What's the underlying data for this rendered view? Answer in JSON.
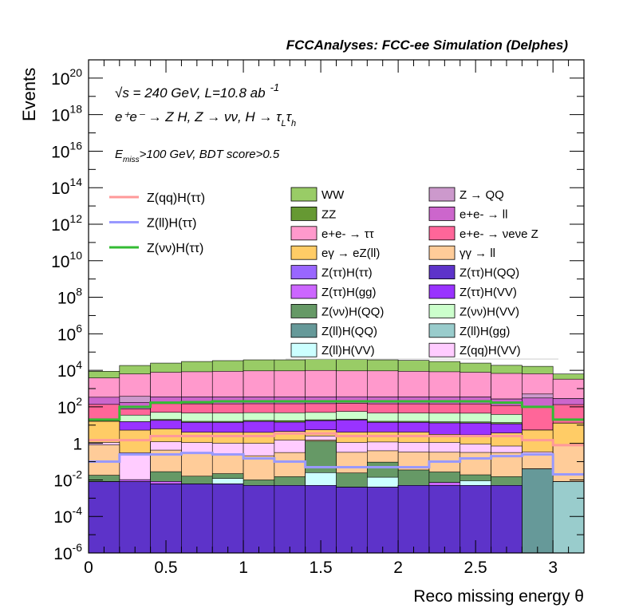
{
  "chart_data": {
    "type": "stacked-histogram",
    "title": "FCCAnalyses: FCC-ee Simulation (Delphes)",
    "xlabel": "Reco missing energy θ",
    "ylabel": "Events",
    "xlim": [
      0,
      3.2
    ],
    "ylim": [
      1e-06,
      1e+21
    ],
    "yscale": "log",
    "bin_edges": [
      0,
      0.2,
      0.4,
      0.6,
      0.8,
      1.0,
      1.2,
      1.4,
      1.6,
      1.8,
      2.0,
      2.2,
      2.4,
      2.6,
      2.8,
      3.0,
      3.2
    ],
    "x_ticks": [
      "0",
      "0.5",
      "1",
      "1.5",
      "2",
      "2.5",
      "3"
    ],
    "x_tick_values": [
      0,
      0.5,
      1,
      1.5,
      2,
      2.5,
      3
    ],
    "y_ticks": [
      {
        "base": "10",
        "exp": "-6",
        "value": 1e-06
      },
      {
        "base": "10",
        "exp": "-4",
        "value": 0.0001
      },
      {
        "base": "10",
        "exp": "-2",
        "value": 0.01
      },
      {
        "base": "1",
        "exp": "",
        "value": 1
      },
      {
        "base": "10",
        "exp": "2",
        "value": 100.0
      },
      {
        "base": "10",
        "exp": "4",
        "value": 10000.0
      },
      {
        "base": "10",
        "exp": "6",
        "value": 1000000.0
      },
      {
        "base": "10",
        "exp": "8",
        "value": 100000000.0
      },
      {
        "base": "10",
        "exp": "10",
        "value": 10000000000.0
      },
      {
        "base": "10",
        "exp": "12",
        "value": 1000000000000.0
      },
      {
        "base": "10",
        "exp": "14",
        "value": 100000000000000.0
      },
      {
        "base": "10",
        "exp": "16",
        "value": 1e+16
      },
      {
        "base": "10",
        "exp": "18",
        "value": 1e+18
      },
      {
        "base": "10",
        "exp": "20",
        "value": 1e+20
      }
    ],
    "annotations": {
      "line1": "√s = 240 GeV, L=10.8 ab",
      "line1_sup": "-1",
      "line2": "e⁺e⁻ → Z H, Z → νν, H → τ",
      "line2_sub1": "L",
      "line2_tau": "τ",
      "line2_sub2": "h",
      "line3": "E",
      "line3_sub": "miss",
      "line3_rest": ">100 GeV, BDT score>0.5"
    },
    "stack_order_top_first": [
      "WW",
      "e+e- → ττ",
      "Z → QQ",
      "e+e- → ll",
      "e+e- → νeνe Z",
      "Z(νν)H(VV)",
      "ZZ",
      "Z(ττ)H(VV)",
      "eγ → eZ(ll)",
      "Z(qq)H(VV)",
      "γγ → ll",
      "Z(νν)H(QQ)",
      "Z(ll)H(VV)",
      "Z(ττ)H(gg)",
      "Z(ll)H(QQ)",
      "Z(ll)H(gg)",
      "Z(ττ)H(QQ)"
    ],
    "backgrounds": [
      {
        "name": "Z(ττ)H(QQ)",
        "color": "#5d33c9",
        "values": [
          0.008,
          0.008,
          0.006,
          0.006,
          0.006,
          0.005,
          0.005,
          0.005,
          0.004,
          0.004,
          0.005,
          0.005,
          0.005,
          0.005,
          0,
          0
        ]
      },
      {
        "name": "Z(ll)H(gg)",
        "color": "#99cccc",
        "values": [
          0,
          0,
          0,
          0,
          0,
          0,
          0,
          0,
          0,
          0,
          0,
          0,
          0,
          0,
          0,
          0.008
        ]
      },
      {
        "name": "Z(ll)H(QQ)",
        "color": "#669999",
        "values": [
          0,
          0,
          0,
          0,
          0,
          0,
          0,
          0,
          0,
          0,
          0,
          0,
          0,
          0,
          0.04,
          0
        ]
      },
      {
        "name": "Z(ττ)H(gg)",
        "color": "#cc66ff",
        "values": [
          0,
          0.0022,
          0.0022,
          0,
          0,
          0,
          0,
          0,
          0,
          0,
          0,
          0.0022,
          0,
          0,
          0,
          0
        ]
      },
      {
        "name": "Z(ll)H(VV)",
        "color": "#ccffff",
        "values": [
          0,
          0,
          0,
          0,
          0.006,
          0,
          0,
          0.02,
          0,
          0.01,
          0,
          0,
          0.004,
          0,
          0,
          0
        ]
      },
      {
        "name": "Z(νν)H(QQ)",
        "color": "#669966",
        "values": [
          0.01,
          0,
          0.02,
          0.01,
          0.01,
          0.005,
          0.01,
          1.3,
          0.02,
          0.08,
          0.03,
          0.02,
          0.01,
          0.01,
          0,
          0
        ]
      },
      {
        "name": "γγ → ll",
        "color": "#ffcc99",
        "values": [
          0.8,
          0,
          0.4,
          0.3,
          0.2,
          0.2,
          0.3,
          0.2,
          0.3,
          0.3,
          0.3,
          0.3,
          0.3,
          0.3,
          0.2,
          0.8
        ]
      },
      {
        "name": "Z(qq)H(VV)",
        "color": "#ffccff",
        "values": [
          0.3,
          0.3,
          0.8,
          0.8,
          0.8,
          0.8,
          1.2,
          1.0,
          0.8,
          0.8,
          0.8,
          0.8,
          0.6,
          0.4,
          0.1,
          0.08
        ]
      },
      {
        "name": "eγ → eZ(ll)",
        "color": "#ffcc66",
        "values": [
          15,
          5,
          5,
          3,
          3,
          3,
          3,
          3,
          3,
          3,
          3,
          2,
          2,
          3,
          5,
          12
        ]
      },
      {
        "name": "Z(ττ)H(VV)",
        "color": "#9933ff",
        "values": [
          0,
          10,
          12,
          10,
          10,
          12,
          10,
          12,
          15,
          10,
          10,
          10,
          10,
          8,
          0,
          0
        ]
      },
      {
        "name": "ZZ",
        "color": "#669933",
        "values": [
          0,
          0,
          2,
          2,
          2,
          2,
          3,
          2,
          2,
          2,
          2,
          2,
          2,
          2,
          0,
          0
        ]
      },
      {
        "name": "Z(νν)H(VV)",
        "color": "#ccffcc",
        "values": [
          0,
          20,
          30,
          30,
          30,
          30,
          30,
          30,
          35,
          30,
          30,
          30,
          30,
          25,
          0,
          0
        ]
      },
      {
        "name": "e+e- → νeνe Z",
        "color": "#ff6699",
        "values": [
          120,
          40,
          100,
          100,
          100,
          100,
          100,
          100,
          100,
          100,
          100,
          100,
          100,
          80,
          100,
          120
        ]
      },
      {
        "name": "e+e- → ll",
        "color": "#cc66cc",
        "values": [
          200,
          100,
          200,
          200,
          200,
          200,
          200,
          200,
          200,
          200,
          200,
          200,
          200,
          150,
          200,
          150
        ]
      },
      {
        "name": "Z → QQ",
        "color": "#cc99cc",
        "values": [
          0,
          200,
          0,
          0,
          0,
          0,
          0,
          0,
          0,
          0,
          0,
          0,
          0,
          0,
          200,
          0
        ]
      },
      {
        "name": "e+e- → ττ",
        "color": "#ff99cc",
        "values": [
          3500,
          6000,
          7500,
          8000,
          8500,
          9000,
          9000,
          9500,
          9000,
          9000,
          8500,
          8000,
          7500,
          6500,
          6000,
          3000
        ]
      },
      {
        "name": "WW",
        "color": "#99cc66",
        "values": [
          5000,
          12000,
          17000,
          22000,
          25000,
          28000,
          28000,
          30000,
          30000,
          28000,
          26000,
          22000,
          17000,
          12000,
          10000,
          3000
        ]
      }
    ],
    "signals": [
      {
        "name": "Z(qq)H(ττ)",
        "color": "#ff9999",
        "values": [
          1.5,
          1.5,
          2.5,
          2.5,
          2.5,
          2.5,
          3.5,
          3.5,
          2.5,
          2.5,
          2.5,
          2.5,
          2.5,
          2.5,
          1.5,
          0.8
        ]
      },
      {
        "name": "Z(ll)H(ττ)",
        "color": "#9999ff",
        "values": [
          0.1,
          0.25,
          0.25,
          0.3,
          0.25,
          0.15,
          0.1,
          0.05,
          0.05,
          0.05,
          0.05,
          0.1,
          0.15,
          0.2,
          0.25,
          0.02
        ]
      },
      {
        "name": "Z(νν)H(ττ)",
        "color": "#33bb33",
        "values": [
          20,
          100,
          170,
          180,
          200,
          200,
          200,
          200,
          200,
          200,
          200,
          200,
          200,
          170,
          100,
          20
        ]
      }
    ],
    "legend_signals": [
      {
        "name": "Z(qq)H(ττ)",
        "color": "#ff9999"
      },
      {
        "name": "Z(ll)H(ττ)",
        "color": "#9999ff"
      },
      {
        "name": "Z(νν)H(ττ)",
        "color": "#33bb33"
      }
    ],
    "legend_backgrounds": [
      {
        "name": "WW",
        "color": "#99cc66"
      },
      {
        "name": "Z → QQ",
        "color": "#cc99cc"
      },
      {
        "name": "ZZ",
        "color": "#669933"
      },
      {
        "name": "e+e- → ll",
        "color": "#cc66cc"
      },
      {
        "name": "e+e- → ττ",
        "color": "#ff99cc"
      },
      {
        "name": "e+e- → νeνe Z",
        "color": "#ff6699"
      },
      {
        "name": "eγ → eZ(ll)",
        "color": "#ffcc66"
      },
      {
        "name": "γγ → ll",
        "color": "#ffcc99"
      },
      {
        "name": "Z(ττ)H(ττ)",
        "color": "#9966ff"
      },
      {
        "name": "Z(ττ)H(QQ)",
        "color": "#5d33c9"
      },
      {
        "name": "Z(ττ)H(gg)",
        "color": "#cc66ff"
      },
      {
        "name": "Z(ττ)H(VV)",
        "color": "#9933ff"
      },
      {
        "name": "Z(νν)H(QQ)",
        "color": "#669966"
      },
      {
        "name": "Z(νν)H(VV)",
        "color": "#ccffcc"
      },
      {
        "name": "Z(ll)H(QQ)",
        "color": "#669999"
      },
      {
        "name": "Z(ll)H(gg)",
        "color": "#99cccc"
      },
      {
        "name": "Z(ll)H(VV)",
        "color": "#ccffff"
      },
      {
        "name": "Z(qq)H(VV)",
        "color": "#ffccff"
      }
    ],
    "grid": false,
    "legend_placement": "upper-middle"
  }
}
